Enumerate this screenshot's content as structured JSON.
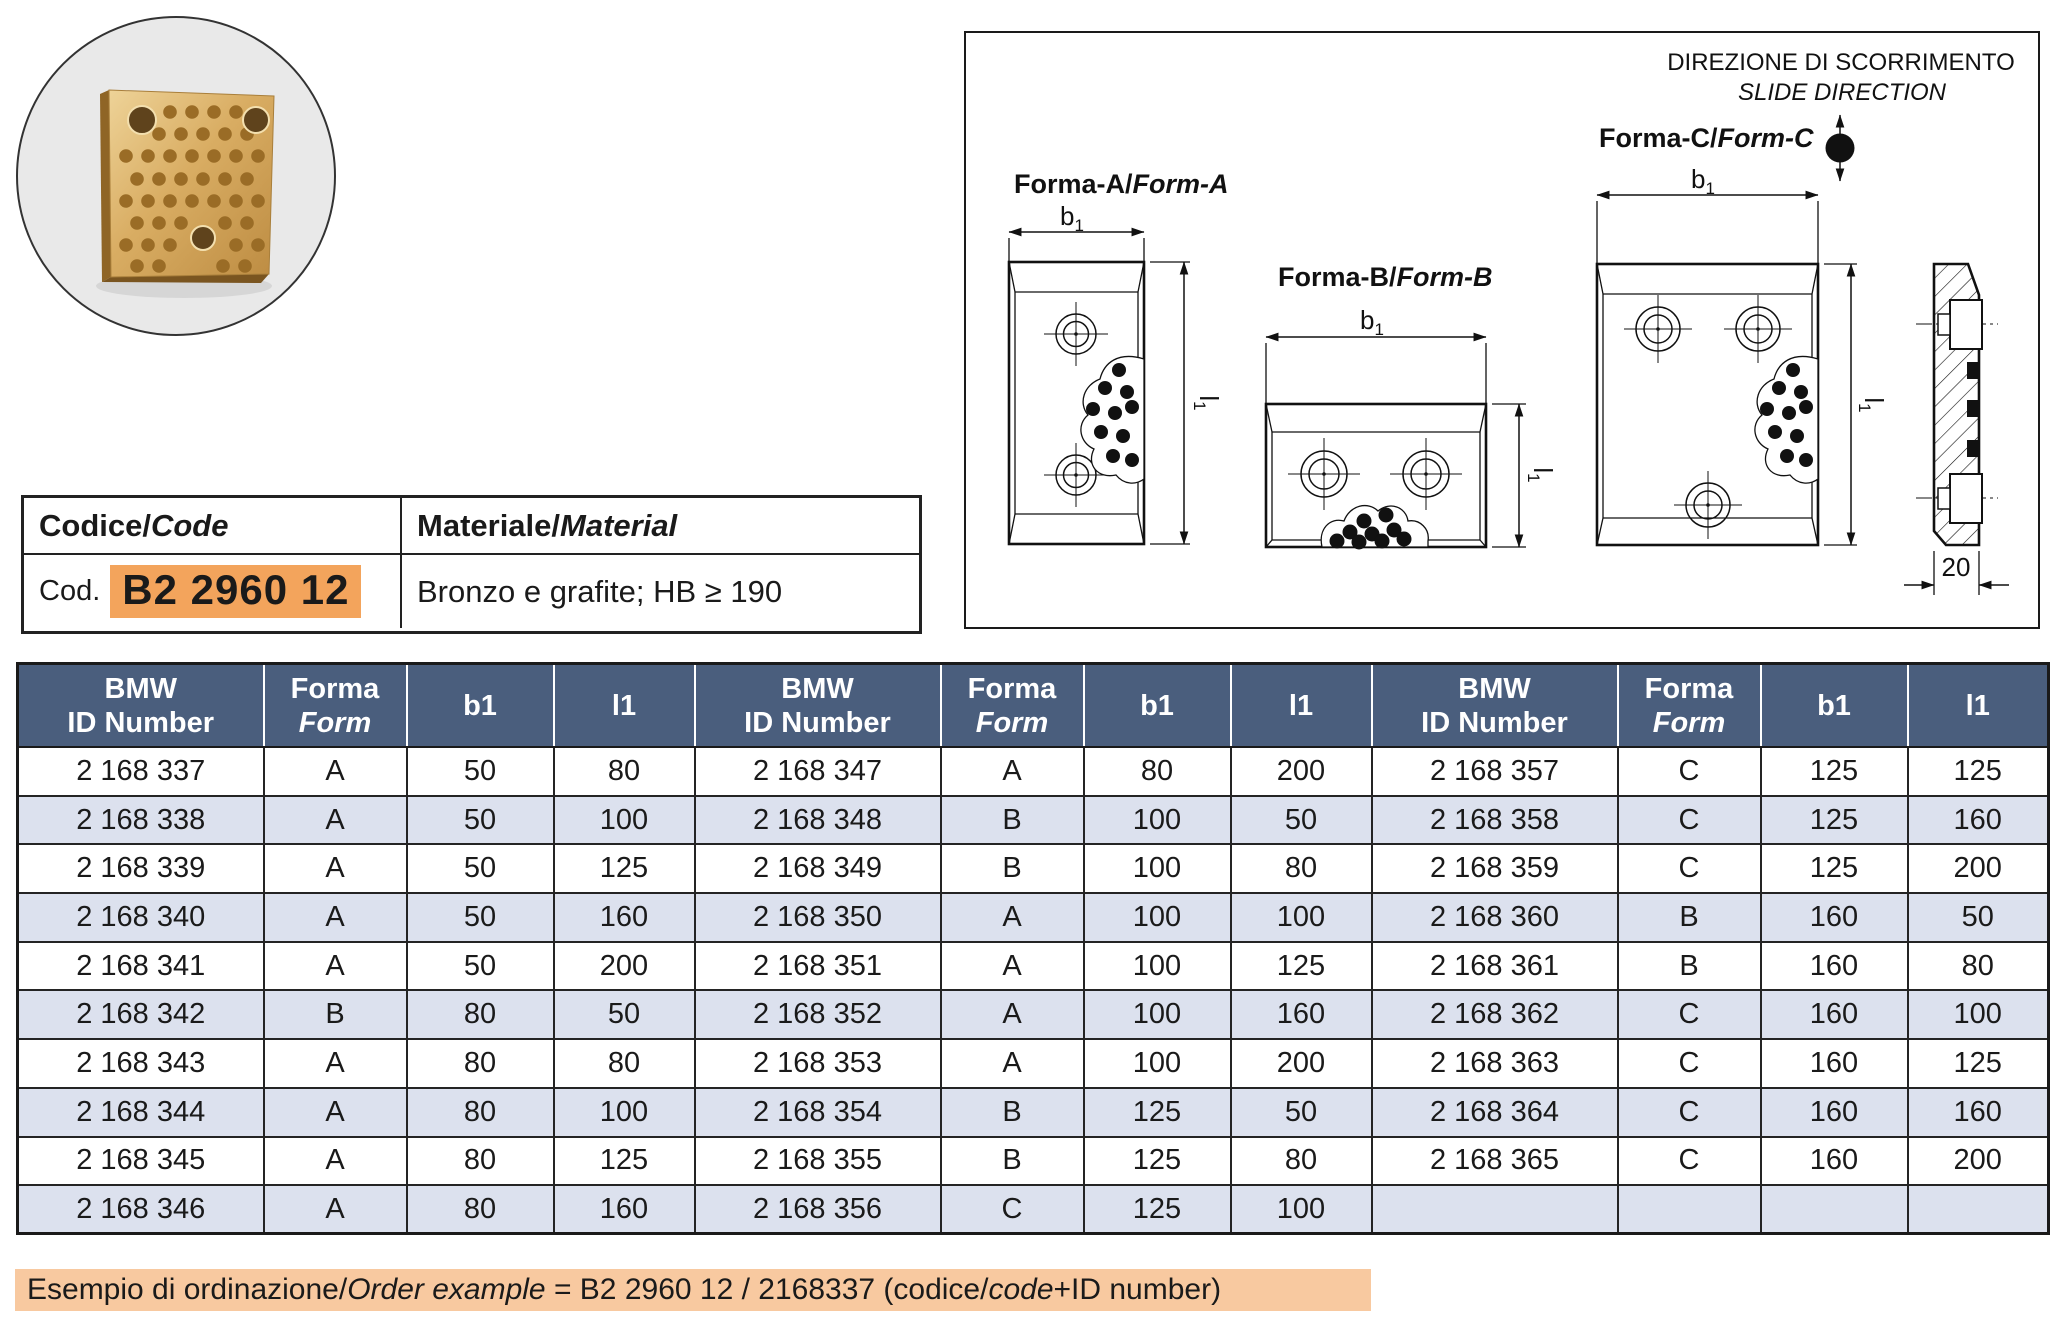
{
  "code_panel": {
    "header_left_roman": "Codice/",
    "header_left_italic": "Code",
    "header_right_roman": "Materiale/",
    "header_right_italic": "Material",
    "code_label": "Cod.",
    "code_value": "B2 2960 12",
    "material_value": "Bronzo e grafite; HB ≥ 190"
  },
  "drawings": {
    "slide_direction_line1": "DIREZIONE DI SCORRIMENTO",
    "slide_direction_line2": "SLIDE DIRECTION",
    "form_a_roman": "Forma-A/",
    "form_a_italic": "Form-A",
    "form_b_roman": "Forma-B/",
    "form_b_italic": "Form-B",
    "form_c_roman": "Forma-C/",
    "form_c_italic": "Form-C",
    "dim_b_letter": "b",
    "dim_l_letter": "l",
    "dim_subscript": "1",
    "thickness_label": "20"
  },
  "parts_table": {
    "headers": {
      "id_line1": "BMW",
      "id_line2": "ID Number",
      "form_line1": "Forma",
      "form_line2": "Form",
      "b1": "b1",
      "l1": "l1"
    },
    "groups": [
      [
        {
          "id": "2 168 337",
          "form": "A",
          "b1": "50",
          "l1": "80"
        },
        {
          "id": "2 168 338",
          "form": "A",
          "b1": "50",
          "l1": "100"
        },
        {
          "id": "2 168 339",
          "form": "A",
          "b1": "50",
          "l1": "125"
        },
        {
          "id": "2 168 340",
          "form": "A",
          "b1": "50",
          "l1": "160"
        },
        {
          "id": "2 168 341",
          "form": "A",
          "b1": "50",
          "l1": "200"
        },
        {
          "id": "2 168 342",
          "form": "B",
          "b1": "80",
          "l1": "50"
        },
        {
          "id": "2 168 343",
          "form": "A",
          "b1": "80",
          "l1": "80"
        },
        {
          "id": "2 168 344",
          "form": "A",
          "b1": "80",
          "l1": "100"
        },
        {
          "id": "2 168 345",
          "form": "A",
          "b1": "80",
          "l1": "125"
        },
        {
          "id": "2 168 346",
          "form": "A",
          "b1": "80",
          "l1": "160"
        }
      ],
      [
        {
          "id": "2 168 347",
          "form": "A",
          "b1": "80",
          "l1": "200"
        },
        {
          "id": "2 168 348",
          "form": "B",
          "b1": "100",
          "l1": "50"
        },
        {
          "id": "2 168 349",
          "form": "B",
          "b1": "100",
          "l1": "80"
        },
        {
          "id": "2 168 350",
          "form": "A",
          "b1": "100",
          "l1": "100"
        },
        {
          "id": "2 168 351",
          "form": "A",
          "b1": "100",
          "l1": "125"
        },
        {
          "id": "2 168 352",
          "form": "A",
          "b1": "100",
          "l1": "160"
        },
        {
          "id": "2 168 353",
          "form": "A",
          "b1": "100",
          "l1": "200"
        },
        {
          "id": "2 168 354",
          "form": "B",
          "b1": "125",
          "l1": "50"
        },
        {
          "id": "2 168 355",
          "form": "B",
          "b1": "125",
          "l1": "80"
        },
        {
          "id": "2 168 356",
          "form": "C",
          "b1": "125",
          "l1": "100"
        }
      ],
      [
        {
          "id": "2 168 357",
          "form": "C",
          "b1": "125",
          "l1": "125"
        },
        {
          "id": "2 168 358",
          "form": "C",
          "b1": "125",
          "l1": "160"
        },
        {
          "id": "2 168 359",
          "form": "C",
          "b1": "125",
          "l1": "200"
        },
        {
          "id": "2 168 360",
          "form": "B",
          "b1": "160",
          "l1": "50"
        },
        {
          "id": "2 168 361",
          "form": "B",
          "b1": "160",
          "l1": "80"
        },
        {
          "id": "2 168 362",
          "form": "C",
          "b1": "160",
          "l1": "100"
        },
        {
          "id": "2 168 363",
          "form": "C",
          "b1": "160",
          "l1": "125"
        },
        {
          "id": "2 168 364",
          "form": "C",
          "b1": "160",
          "l1": "160"
        },
        {
          "id": "2 168 365",
          "form": "C",
          "b1": "160",
          "l1": "200"
        },
        {
          "id": "",
          "form": "",
          "b1": "",
          "l1": ""
        }
      ]
    ]
  },
  "order_example": {
    "seg1": "Esempio di ordinazione/",
    "seg2": "Order example",
    "seg3": " = B2 2960 12 / 2168337 (codice/",
    "seg4": "code",
    "seg5": "+ID number)"
  },
  "colors": {
    "header_bg": "#4A5E7D",
    "row_alt_bg": "#DCE1EE",
    "code_highlight": "#F3A45C",
    "example_highlight": "#F8C9A0"
  }
}
